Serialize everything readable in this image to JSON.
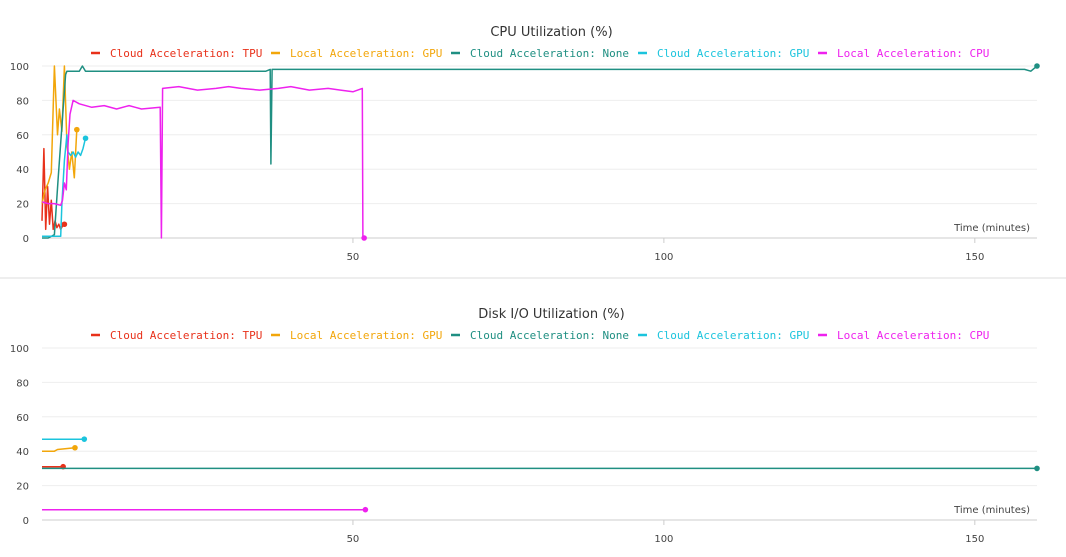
{
  "legend_items": [
    {
      "label": "Cloud Acceleration: TPU",
      "color": "#e8311a"
    },
    {
      "label": "Local Acceleration: GPU",
      "color": "#f2a60a"
    },
    {
      "label": "Cloud Acceleration: None",
      "color": "#1f8f82"
    },
    {
      "label": "Cloud Acceleration: GPU",
      "color": "#1bc4dd"
    },
    {
      "label": "Local Acceleration: CPU",
      "color": "#ee22ee"
    }
  ],
  "chart_data": [
    {
      "type": "line",
      "title": "CPU Utilization (%)",
      "xlabel": "Time (minutes)",
      "ylabel": "",
      "xlim": [
        0,
        160
      ],
      "ylim": [
        0,
        100
      ],
      "xticks": [
        50,
        100,
        150
      ],
      "yticks": [
        0,
        20,
        40,
        60,
        80,
        100
      ],
      "grid": true,
      "legend": "top",
      "series": [
        {
          "name": "Cloud Acceleration: TPU",
          "color": "#e8311a",
          "x": [
            0,
            0.3,
            0.6,
            0.9,
            1.2,
            1.5,
            1.8,
            2.1,
            2.4,
            2.7,
            3.0,
            3.3,
            3.6
          ],
          "y": [
            10,
            52,
            5,
            30,
            8,
            22,
            5,
            10,
            6,
            8,
            5,
            7,
            8
          ]
        },
        {
          "name": "Local Acceleration: GPU",
          "color": "#f2a60a",
          "x": [
            0,
            0.5,
            1.0,
            1.5,
            2.0,
            2.5,
            2.8,
            3.2,
            3.6,
            4.0,
            4.4,
            4.8,
            5.2,
            5.6
          ],
          "y": [
            20,
            28,
            32,
            38,
            100,
            60,
            75,
            62,
            100,
            55,
            40,
            50,
            35,
            63
          ]
        },
        {
          "name": "Cloud Acceleration: None",
          "color": "#1f8f82",
          "x": [
            0,
            1,
            2,
            2.6,
            3.2,
            3.8,
            4,
            6,
            6.5,
            7,
            10,
            20,
            30,
            36,
            36.7,
            36.8,
            37,
            40,
            60,
            80,
            100,
            120,
            140,
            158,
            159,
            160
          ],
          "y": [
            0,
            0,
            2,
            35,
            65,
            95,
            97,
            97,
            100,
            97,
            97,
            97,
            97,
            97,
            98,
            43,
            98,
            98,
            98,
            98,
            98,
            98,
            98,
            98,
            97,
            100
          ]
        },
        {
          "name": "Cloud Acceleration: GPU",
          "color": "#1bc4dd",
          "x": [
            0,
            0.5,
            1,
            1.5,
            2,
            2.5,
            3,
            3.2,
            3.6,
            4,
            4.2,
            4.6,
            5,
            5.4,
            5.8,
            6.2,
            6.6,
            7
          ],
          "y": [
            1,
            1,
            1,
            1,
            1,
            1,
            1,
            20,
            45,
            60,
            50,
            48,
            50,
            47,
            50,
            48,
            52,
            58
          ]
        },
        {
          "name": "Local Acceleration: CPU",
          "color": "#ee22ee",
          "x": [
            0,
            1,
            2,
            3,
            3.3,
            3.6,
            3.9,
            4.2,
            4.5,
            5,
            6,
            8,
            10,
            12,
            14,
            15,
            16,
            19,
            19.2,
            19.4,
            22,
            25,
            28,
            30,
            32,
            35,
            38,
            40,
            43,
            46,
            48,
            50,
            51.5,
            51.6,
            51.8
          ],
          "y": [
            21,
            20,
            20,
            19,
            22,
            32,
            28,
            55,
            72,
            80,
            78,
            76,
            77,
            75,
            77,
            76,
            75,
            76,
            0,
            87,
            88,
            86,
            87,
            88,
            87,
            86,
            87,
            88,
            86,
            87,
            86,
            85,
            87,
            0,
            0
          ]
        }
      ]
    },
    {
      "type": "line",
      "title": "Disk I/O Utilization (%)",
      "xlabel": "Time (minutes)",
      "ylabel": "",
      "xlim": [
        0,
        160
      ],
      "ylim": [
        0,
        100
      ],
      "xticks": [
        50,
        100,
        150
      ],
      "yticks": [
        0,
        20,
        40,
        60,
        80,
        100
      ],
      "grid": true,
      "legend": "top",
      "series": [
        {
          "name": "Cloud Acceleration: TPU",
          "color": "#e8311a",
          "x": [
            0,
            3.4
          ],
          "y": [
            31,
            31
          ]
        },
        {
          "name": "Local Acceleration: GPU",
          "color": "#f2a60a",
          "x": [
            0,
            2,
            2.5,
            5.3
          ],
          "y": [
            40,
            40,
            41,
            42
          ]
        },
        {
          "name": "Cloud Acceleration: None",
          "color": "#1f8f82",
          "x": [
            0,
            160
          ],
          "y": [
            30,
            30
          ]
        },
        {
          "name": "Cloud Acceleration: GPU",
          "color": "#1bc4dd",
          "x": [
            0,
            6.8
          ],
          "y": [
            47,
            47
          ]
        },
        {
          "name": "Local Acceleration: CPU",
          "color": "#ee22ee",
          "x": [
            0,
            52
          ],
          "y": [
            6,
            6
          ]
        }
      ]
    }
  ]
}
